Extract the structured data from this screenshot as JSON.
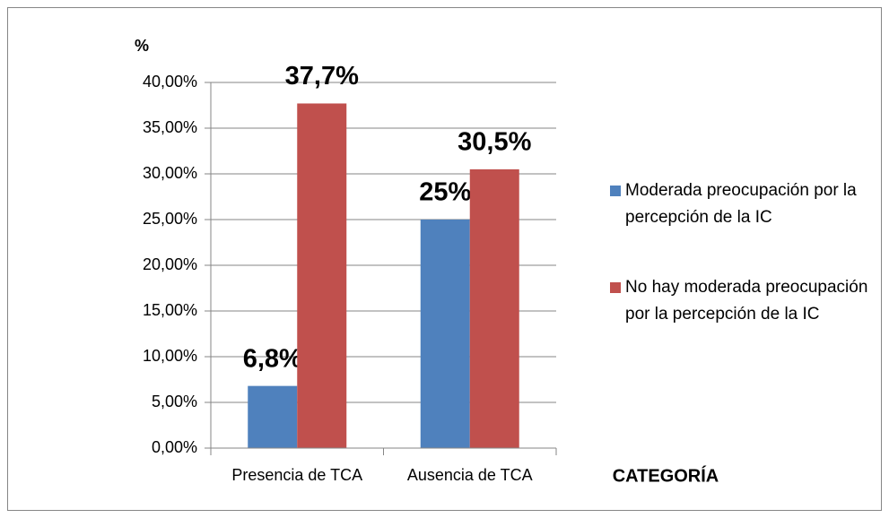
{
  "chart_data": {
    "type": "bar",
    "ylabel": "%",
    "xlabel": "CATEGORÍA",
    "categories": [
      "Presencia de TCA",
      "Ausencia de TCA"
    ],
    "series": [
      {
        "name": "Moderada preocupación por la percepción de la  IC",
        "color": "#4f81bd",
        "values": [
          6.8,
          25
        ],
        "value_labels": [
          "6,8%",
          "25%"
        ]
      },
      {
        "name": "No hay moderada preocupación por la percepción de la  IC",
        "color": "#c0504d",
        "values": [
          37.7,
          30.5
        ],
        "value_labels": [
          "37,7%",
          "30,5%"
        ]
      }
    ],
    "ylim": [
      0,
      40
    ],
    "yticks": [
      {
        "value": 0,
        "label": "0,00%"
      },
      {
        "value": 5,
        "label": "5,00%"
      },
      {
        "value": 10,
        "label": "10,00%"
      },
      {
        "value": 15,
        "label": "15,00%"
      },
      {
        "value": 20,
        "label": "20,00%"
      },
      {
        "value": 25,
        "label": "25,00%"
      },
      {
        "value": 30,
        "label": "30,00%"
      },
      {
        "value": 35,
        "label": "35,00%"
      },
      {
        "value": 40,
        "label": "40,00%"
      }
    ],
    "grid": true,
    "legend": "right"
  }
}
